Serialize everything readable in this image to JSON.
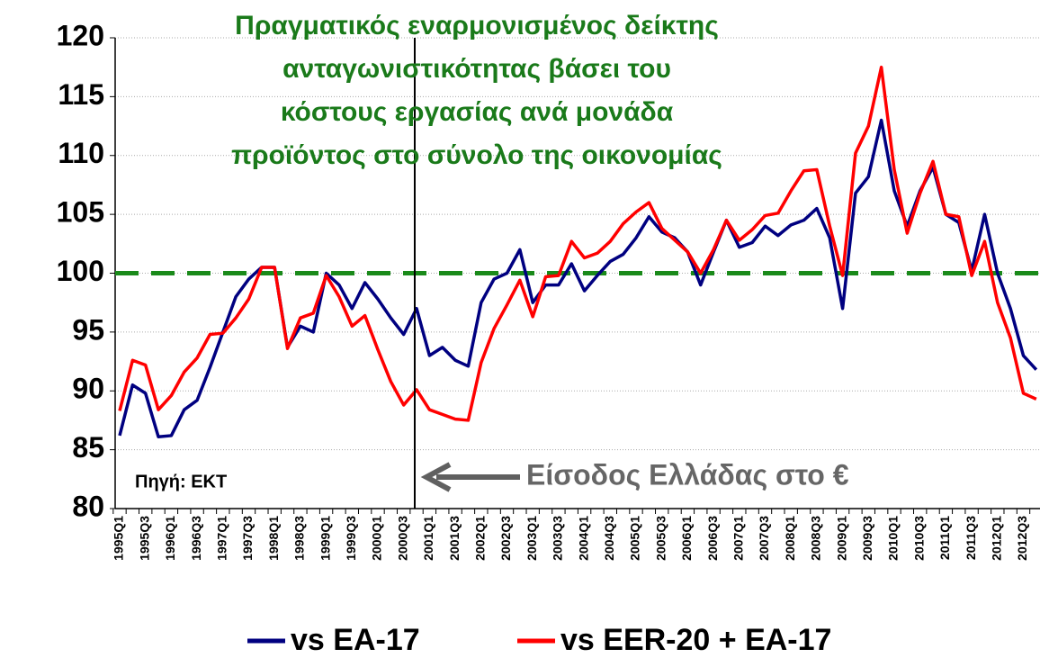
{
  "chart_data": {
    "type": "line",
    "title": [
      "Πραγματικός εναρμονισμένος δείκτης",
      "ανταγωνιστικότητας βάσει του",
      "κόστους εργασίας ανά μονάδα",
      "προϊόντος στο σύνολο της οικονομίας"
    ],
    "annotations": [
      "Πηγή: ΕΚΤ",
      "Είσοδος Ελλάδας στο €"
    ],
    "reference_line": {
      "value": 100,
      "color": "#1a8a1a"
    },
    "categories": [
      "1995Q1",
      null,
      "1995Q3",
      null,
      "1996Q1",
      null,
      "1996Q3",
      null,
      "1997Q1",
      null,
      "1997Q3",
      null,
      "1998Q1",
      null,
      "1998Q3",
      null,
      "1999Q1",
      null,
      "1999Q3",
      null,
      "2000Q1",
      null,
      "2000Q3",
      null,
      "2001Q1",
      null,
      "2001Q3",
      null,
      "2002Q1",
      null,
      "2002Q3",
      null,
      "2003Q1",
      null,
      "2003Q3",
      null,
      "2004Q1",
      null,
      "2004Q3",
      null,
      "2005Q1",
      null,
      "2005Q3",
      null,
      "2006Q1",
      null,
      "2006Q3",
      null,
      "2007Q1",
      null,
      "2007Q3",
      null,
      "2008Q1",
      null,
      "2008Q3",
      null,
      "2009Q1",
      null,
      "2009Q3",
      null,
      "2010Q1",
      null,
      "2010Q3",
      null,
      "2011Q1",
      null,
      "2011Q3",
      null,
      "2012Q1",
      null,
      "2012Q3",
      null
    ],
    "series": [
      {
        "name": "vs EA-17",
        "color": "#000080",
        "values": [
          86.2,
          90.5,
          89.8,
          86.1,
          86.2,
          88.4,
          89.2,
          92.0,
          95.0,
          98.0,
          99.5,
          100.5,
          100.5,
          93.7,
          95.5,
          95.0,
          100.0,
          99.0,
          97.0,
          99.2,
          97.8,
          96.2,
          94.8,
          97.0,
          93.0,
          93.7,
          92.6,
          92.1,
          97.5,
          99.5,
          100.0,
          102.0,
          97.5,
          99.0,
          99.0,
          100.8,
          98.5,
          99.8,
          101.0,
          101.6,
          103.0,
          104.8,
          103.5,
          103.0,
          101.8,
          99.0,
          101.8,
          104.5,
          102.2,
          102.6,
          104.0,
          103.2,
          104.1,
          104.5,
          105.5,
          103.0,
          97.0,
          106.8,
          108.2,
          113.0,
          107.0,
          104.0,
          107.0,
          109.0,
          105.0,
          104.3,
          100.2,
          105.0,
          100.0,
          97.0,
          93.0,
          91.8
        ]
      },
      {
        "name": "vs EER-20 + EA-17",
        "color": "#ff0000",
        "values": [
          88.3,
          92.6,
          92.2,
          88.4,
          89.6,
          91.6,
          92.8,
          94.8,
          94.9,
          96.2,
          97.8,
          100.5,
          100.5,
          93.6,
          96.2,
          96.6,
          99.8,
          98.0,
          95.5,
          96.4,
          93.5,
          90.8,
          88.8,
          90.1,
          88.4,
          88.0,
          87.6,
          87.5,
          92.4,
          95.3,
          97.3,
          99.4,
          96.3,
          99.7,
          99.8,
          102.7,
          101.3,
          101.7,
          102.7,
          104.2,
          105.2,
          106.0,
          103.8,
          102.8,
          101.8,
          100.0,
          102.0,
          104.5,
          102.8,
          103.7,
          104.9,
          105.1,
          107.0,
          108.7,
          108.8,
          104.0,
          99.8,
          110.2,
          112.5,
          117.5,
          108.8,
          103.4,
          106.8,
          109.5,
          105.0,
          104.8,
          99.8,
          102.7,
          97.5,
          94.5,
          89.8,
          89.3
        ]
      }
    ],
    "ylim": [
      80,
      120
    ],
    "yticks": [
      80,
      85,
      90,
      95,
      100,
      105,
      110,
      115,
      120
    ],
    "grid": true
  }
}
